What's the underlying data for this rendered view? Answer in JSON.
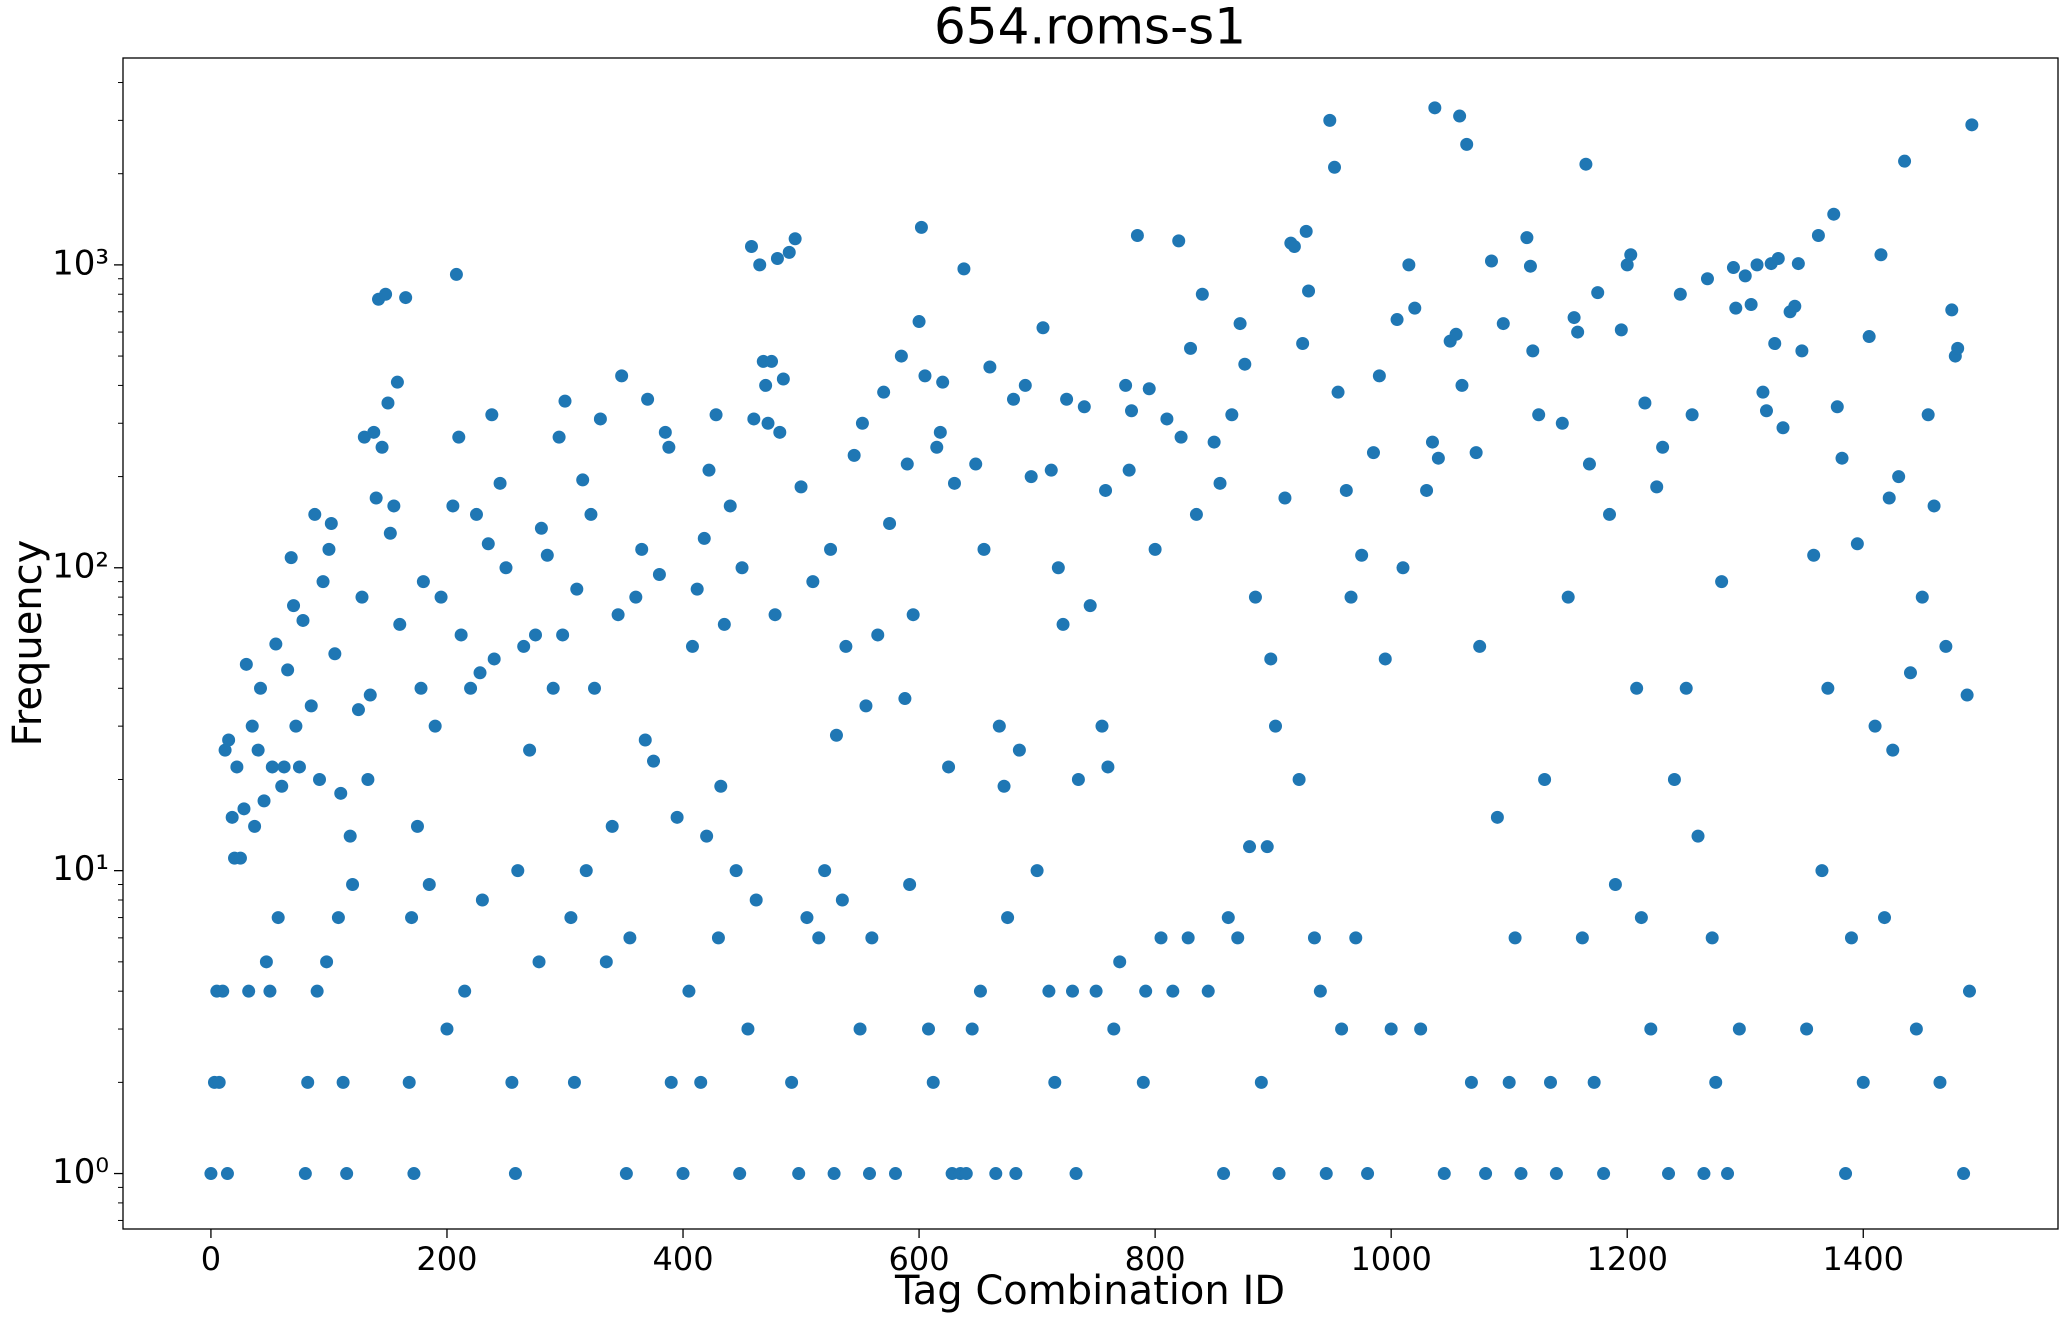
{
  "chart_data": {
    "type": "scatter",
    "title": "654.roms-s1",
    "x_label": "Tag Combination ID",
    "y_label": "Frequency",
    "xlim": [
      -74.5,
      1565
    ],
    "ylim": [
      0.656,
      4820
    ],
    "y_scale": "log",
    "xticks": [
      0,
      200,
      400,
      600,
      800,
      1000,
      1200,
      1400
    ],
    "yticks": [
      {
        "value": 1,
        "label": "10⁰"
      },
      {
        "value": 10,
        "label": "10¹"
      },
      {
        "value": 100,
        "label": "10²"
      },
      {
        "value": 1000,
        "label": "10³"
      }
    ],
    "yminorticks": [
      0.7,
      0.8,
      0.9,
      2,
      3,
      4,
      5,
      6,
      7,
      8,
      9,
      20,
      30,
      40,
      50,
      60,
      70,
      80,
      90,
      200,
      300,
      400,
      500,
      600,
      700,
      800,
      900,
      2000,
      3000,
      4000
    ],
    "grid": false,
    "x": [
      0,
      3,
      5,
      7,
      10,
      12,
      14,
      15,
      18,
      20,
      22,
      25,
      28,
      30,
      32,
      35,
      37,
      40,
      42,
      45,
      47,
      50,
      52,
      55,
      57,
      60,
      62,
      65,
      68,
      70,
      72,
      75,
      78,
      80,
      82,
      85,
      88,
      90,
      92,
      95,
      98,
      100,
      102,
      105,
      108,
      110,
      112,
      115,
      118,
      120,
      125,
      128,
      130,
      133,
      135,
      138,
      140,
      142,
      145,
      148,
      150,
      152,
      155,
      158,
      160,
      165,
      168,
      170,
      172,
      175,
      178,
      180,
      185,
      190,
      195,
      200,
      205,
      208,
      210,
      212,
      215,
      220,
      225,
      228,
      230,
      235,
      238,
      240,
      245,
      250,
      255,
      258,
      260,
      265,
      270,
      275,
      278,
      280,
      285,
      290,
      295,
      298,
      300,
      305,
      308,
      310,
      315,
      318,
      322,
      325,
      330,
      335,
      340,
      345,
      348,
      352,
      355,
      360,
      365,
      368,
      370,
      375,
      380,
      385,
      388,
      390,
      395,
      400,
      405,
      408,
      412,
      415,
      418,
      420,
      422,
      428,
      430,
      432,
      435,
      440,
      445,
      448,
      450,
      455,
      458,
      460,
      462,
      465,
      468,
      470,
      472,
      475,
      478,
      480,
      482,
      485,
      490,
      492,
      495,
      498,
      500,
      505,
      510,
      515,
      520,
      525,
      528,
      530,
      535,
      538,
      545,
      550,
      552,
      555,
      558,
      560,
      565,
      570,
      575,
      580,
      585,
      588,
      590,
      592,
      595,
      600,
      602,
      605,
      608,
      612,
      615,
      618,
      620,
      625,
      628,
      630,
      635,
      638,
      640,
      645,
      648,
      652,
      655,
      660,
      665,
      668,
      672,
      675,
      680,
      682,
      685,
      690,
      695,
      700,
      705,
      710,
      712,
      715,
      718,
      722,
      725,
      730,
      733,
      735,
      740,
      745,
      750,
      755,
      758,
      760,
      765,
      770,
      775,
      778,
      780,
      785,
      790,
      792,
      795,
      800,
      805,
      810,
      815,
      820,
      822,
      828,
      830,
      835,
      840,
      845,
      850,
      855,
      858,
      862,
      865,
      870,
      872,
      876,
      880,
      885,
      890,
      895,
      898,
      902,
      905,
      910,
      915,
      918,
      922,
      925,
      928,
      930,
      935,
      940,
      945,
      948,
      952,
      955,
      958,
      962,
      966,
      970,
      975,
      980,
      985,
      990,
      995,
      1000,
      1005,
      1010,
      1015,
      1020,
      1025,
      1030,
      1035,
      1037,
      1040,
      1045,
      1050,
      1055,
      1058,
      1060,
      1064,
      1068,
      1072,
      1075,
      1080,
      1085,
      1090,
      1095,
      1100,
      1105,
      1110,
      1115,
      1118,
      1120,
      1125,
      1130,
      1135,
      1140,
      1145,
      1150,
      1155,
      1158,
      1162,
      1165,
      1168,
      1172,
      1175,
      1180,
      1185,
      1190,
      1195,
      1200,
      1203,
      1208,
      1212,
      1215,
      1220,
      1225,
      1230,
      1235,
      1240,
      1245,
      1250,
      1255,
      1260,
      1265,
      1268,
      1272,
      1275,
      1280,
      1285,
      1290,
      1292,
      1295,
      1300,
      1305,
      1310,
      1315,
      1318,
      1322,
      1325,
      1328,
      1332,
      1338,
      1342,
      1345,
      1348,
      1352,
      1358,
      1362,
      1365,
      1370,
      1375,
      1378,
      1382,
      1385,
      1390,
      1395,
      1400,
      1405,
      1410,
      1415,
      1418,
      1422,
      1425,
      1430,
      1435,
      1440,
      1445,
      1450,
      1455,
      1460,
      1465,
      1470,
      1475,
      1478,
      1480,
      1485,
      1488,
      1490,
      1492
    ],
    "series": [
      {
        "color": "#1f77b4",
        "values": [
          1,
          2,
          4,
          2,
          4,
          25,
          1,
          27,
          15,
          11,
          22,
          11,
          16,
          48,
          4,
          30,
          14,
          25,
          40,
          17,
          5,
          4,
          22,
          56,
          7,
          19,
          22,
          46,
          108,
          75,
          30,
          22,
          67,
          1,
          2,
          35,
          150,
          4,
          20,
          90,
          5,
          115,
          140,
          52,
          7,
          18,
          2,
          1,
          13,
          9,
          34,
          80,
          270,
          20,
          38,
          280,
          170,
          770,
          250,
          800,
          350,
          130,
          160,
          410,
          65,
          780,
          2,
          7,
          1,
          14,
          40,
          90,
          9,
          30,
          80,
          3,
          160,
          930,
          270,
          60,
          4,
          40,
          150,
          45,
          8,
          120,
          320,
          50,
          190,
          100,
          2,
          1,
          10,
          55,
          25,
          60,
          5,
          135,
          110,
          40,
          270,
          60,
          355,
          7,
          2,
          85,
          195,
          10,
          150,
          40,
          310,
          5,
          14,
          70,
          430,
          1,
          6,
          80,
          115,
          27,
          360,
          23,
          95,
          280,
          250,
          2,
          15,
          1,
          4,
          55,
          85,
          2,
          125,
          13,
          210,
          320,
          6,
          19,
          65,
          160,
          10,
          1,
          100,
          3,
          1150,
          310,
          8,
          1000,
          480,
          400,
          300,
          480,
          70,
          1050,
          280,
          420,
          1100,
          2,
          1220,
          1,
          185,
          7,
          90,
          6,
          10,
          115,
          1,
          28,
          8,
          55,
          235,
          3,
          300,
          35,
          1,
          6,
          60,
          380,
          140,
          1,
          500,
          37,
          220,
          9,
          70,
          650,
          1330,
          430,
          3,
          2,
          250,
          280,
          410,
          22,
          1,
          190,
          1,
          970,
          1,
          3,
          220,
          4,
          115,
          460,
          1,
          30,
          19,
          7,
          360,
          1,
          25,
          400,
          200,
          10,
          620,
          4,
          210,
          2,
          100,
          65,
          360,
          4,
          1,
          20,
          340,
          75,
          4,
          30,
          180,
          22,
          3,
          5,
          400,
          210,
          330,
          1250,
          2,
          4,
          390,
          115,
          6,
          310,
          4,
          1200,
          270,
          6,
          530,
          150,
          800,
          4,
          260,
          190,
          1,
          7,
          320,
          6,
          640,
          470,
          12,
          80,
          2,
          12,
          50,
          30,
          1,
          170,
          1180,
          1150,
          20,
          550,
          1290,
          820,
          6,
          4,
          1,
          3000,
          2100,
          380,
          3,
          180,
          80,
          6,
          110,
          1,
          240,
          430,
          50,
          3,
          660,
          100,
          1000,
          720,
          3,
          180,
          260,
          3300,
          230,
          1,
          560,
          590,
          3100,
          400,
          2500,
          2,
          240,
          55,
          1,
          1030,
          15,
          640,
          2,
          6,
          1,
          1230,
          990,
          520,
          320,
          20,
          2,
          1,
          300,
          80,
          670,
          600,
          6,
          2150,
          220,
          2,
          810,
          1,
          150,
          9,
          610,
          1000,
          1080,
          40,
          7,
          350,
          3,
          185,
          250,
          1,
          20,
          800,
          40,
          320,
          13,
          1,
          900,
          6,
          2,
          90,
          1,
          980,
          720,
          3,
          920,
          740,
          1000,
          380,
          330,
          1010,
          550,
          1050,
          290,
          700,
          730,
          1010,
          520,
          3,
          110,
          1250,
          10,
          40,
          1470,
          340,
          230,
          1,
          6,
          120,
          2,
          580,
          30,
          1080,
          7,
          170,
          25,
          200,
          2200,
          45,
          3,
          80,
          320,
          160,
          2,
          55,
          710,
          500,
          530,
          1,
          38,
          4,
          2900
        ]
      }
    ]
  }
}
